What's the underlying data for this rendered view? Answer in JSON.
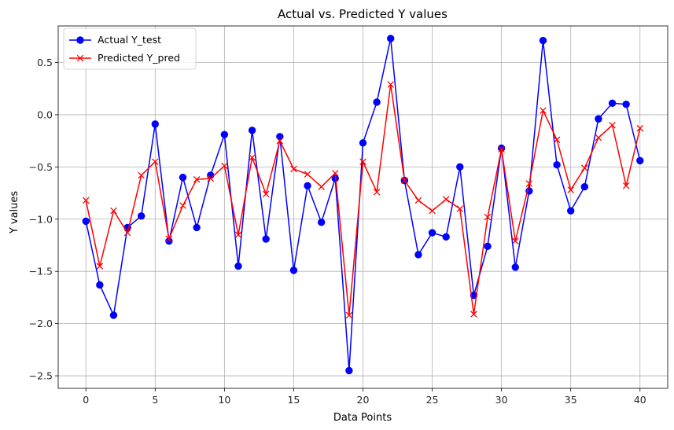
{
  "chart_data": {
    "type": "line",
    "title": "Actual vs. Predicted Y values",
    "xlabel": "Data Points",
    "ylabel": "Y values",
    "xlim": [
      -2,
      42
    ],
    "ylim": [
      -2.62,
      0.85
    ],
    "xticks": [
      0,
      5,
      10,
      15,
      20,
      25,
      30,
      35,
      40
    ],
    "yticks": [
      -2.5,
      -2.0,
      -1.5,
      -1.0,
      -0.5,
      0.0,
      0.5
    ],
    "ytick_labels": [
      "−2.5",
      "−2.0",
      "−1.5",
      "−1.0",
      "−0.5",
      "0.0",
      "0.5"
    ],
    "grid": true,
    "legend_position": "top-left",
    "x": [
      0,
      1,
      2,
      3,
      4,
      5,
      6,
      7,
      8,
      9,
      10,
      11,
      12,
      13,
      14,
      15,
      16,
      17,
      18,
      19,
      20,
      21,
      22,
      23,
      24,
      25,
      26,
      27,
      28,
      29,
      30,
      31,
      32,
      33,
      34,
      35,
      36,
      37,
      38,
      39,
      40
    ],
    "series": [
      {
        "name": "Actual Y_test",
        "color": "#0000ff",
        "marker": "circle",
        "values": [
          -1.02,
          -1.63,
          -1.92,
          -1.08,
          -0.97,
          -0.09,
          -1.21,
          -0.6,
          -1.08,
          -0.58,
          -0.19,
          -1.45,
          -0.15,
          -1.19,
          -0.21,
          -1.49,
          -0.68,
          -1.03,
          -0.61,
          -2.45,
          -0.27,
          0.12,
          0.73,
          -0.63,
          -1.34,
          -1.13,
          -1.17,
          -0.5,
          -1.73,
          -1.26,
          -0.32,
          -1.46,
          -0.73,
          0.71,
          -0.48,
          -0.92,
          -0.69,
          -0.04,
          0.11,
          0.1,
          -0.44
        ]
      },
      {
        "name": "Predicted Y_pred",
        "color": "#ff0000",
        "marker": "x",
        "values": [
          -0.82,
          -1.45,
          -0.92,
          -1.13,
          -0.58,
          -0.45,
          -1.19,
          -0.87,
          -0.62,
          -0.61,
          -0.49,
          -1.15,
          -0.41,
          -0.76,
          -0.25,
          -0.52,
          -0.57,
          -0.69,
          -0.56,
          -1.92,
          -0.45,
          -0.74,
          0.29,
          -0.63,
          -0.82,
          -0.92,
          -0.81,
          -0.9,
          -1.91,
          -0.98,
          -0.33,
          -1.21,
          -0.66,
          0.04,
          -0.24,
          -0.72,
          -0.51,
          -0.22,
          -0.1,
          -0.68,
          -0.13
        ]
      }
    ]
  }
}
